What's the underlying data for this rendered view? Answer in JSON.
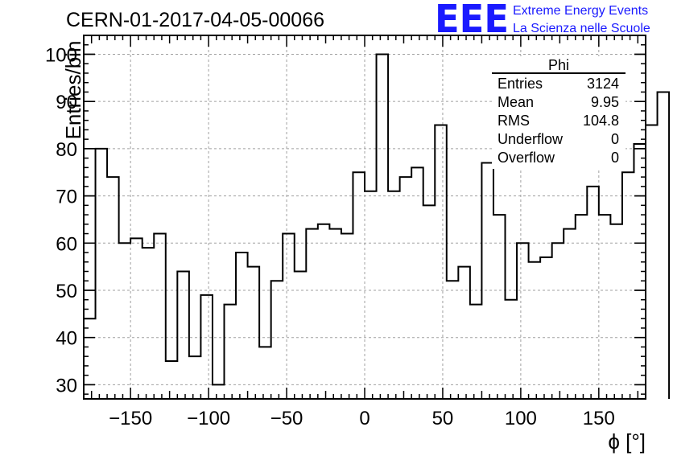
{
  "header": {
    "run_title": "CERN-01-2017-04-05-00066",
    "logo_text": "EEE",
    "logo_line1": "Extreme Energy Events",
    "logo_line2": "La Scienza nelle Scuole"
  },
  "stats_box": {
    "title": "Phi",
    "rows": [
      {
        "label": "Entries",
        "value": "3124"
      },
      {
        "label": "Mean",
        "value": "9.95"
      },
      {
        "label": "RMS",
        "value": "104.8"
      },
      {
        "label": "Underflow",
        "value": "0"
      },
      {
        "label": "Overflow",
        "value": "0"
      }
    ]
  },
  "colors": {
    "line": "#000000",
    "grid": "#a0a0a0",
    "logo": "#1a1aff"
  },
  "chart_data": {
    "type": "bar",
    "style": "step-histogram",
    "title": "CERN-01-2017-04-05-00066",
    "xlabel": "ϕ [°]",
    "ylabel": "Entries/bin",
    "xlim": [
      -180,
      180
    ],
    "ylim": [
      27,
      104
    ],
    "x_ticks": [
      -150,
      -100,
      -50,
      0,
      50,
      100,
      150
    ],
    "x_tick_labels": [
      "−150",
      "−100",
      "−50",
      "0",
      "50",
      "100",
      "150"
    ],
    "y_ticks": [
      30,
      40,
      50,
      60,
      70,
      80,
      90,
      100
    ],
    "y_tick_labels": [
      "30",
      "40",
      "50",
      "60",
      "70",
      "80",
      "90",
      "100"
    ],
    "grid": true,
    "bin_width": 7.5,
    "bin_edges_start": -180,
    "values": [
      44,
      80,
      74,
      60,
      61,
      59,
      62,
      35,
      54,
      36,
      49,
      30,
      47,
      58,
      55,
      38,
      52,
      62,
      54,
      63,
      64,
      63,
      62,
      75,
      71,
      100,
      71,
      74,
      76,
      68,
      85,
      52,
      55,
      47,
      77,
      66,
      48,
      60,
      56,
      57,
      60,
      63,
      66,
      72,
      66,
      64,
      75,
      81,
      85,
      92
    ]
  }
}
